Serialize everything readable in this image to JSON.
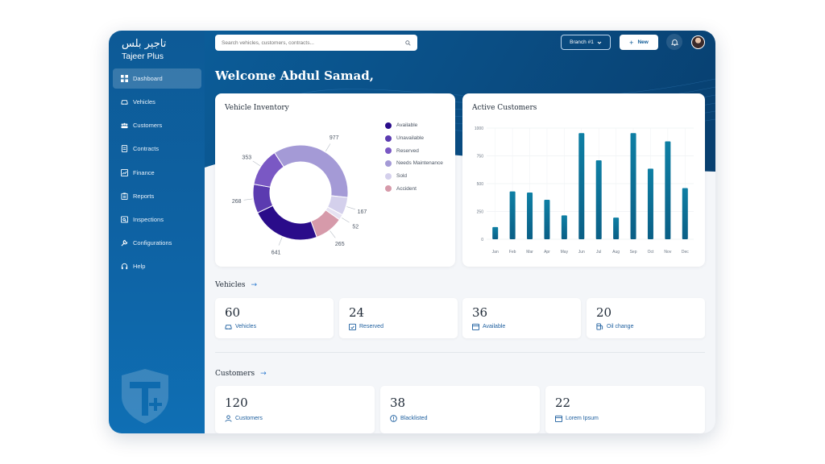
{
  "brand": {
    "arabic": "تاجير بلس",
    "english": "Tajeer Plus"
  },
  "sidebar": {
    "items": [
      {
        "label": "Dashboard",
        "icon": "grid-icon",
        "active": true
      },
      {
        "label": "Vehicles",
        "icon": "car-icon"
      },
      {
        "label": "Customers",
        "icon": "users-icon"
      },
      {
        "label": "Contracts",
        "icon": "document-icon"
      },
      {
        "label": "Finance",
        "icon": "chart-icon"
      },
      {
        "label": "Reports",
        "icon": "clipboard-icon"
      },
      {
        "label": "Inspections",
        "icon": "inspect-icon"
      },
      {
        "label": "Configurations",
        "icon": "wrench-icon"
      },
      {
        "label": "Help",
        "icon": "headset-icon"
      }
    ]
  },
  "header": {
    "search_placeholder": "Search vehicles, customers, contracts...",
    "branch_label": "Branch #1",
    "new_label": "New",
    "welcome": "Welcome Abdul Samad,"
  },
  "inventory": {
    "title": "Vehicle Inventory",
    "legend": [
      "Available",
      "Unavailable",
      "Reserved",
      "Needs Maintenance",
      "Sold",
      "Accident"
    ],
    "colors": [
      "#2a0c8a",
      "#5b3bb0",
      "#7a58c4",
      "#a49ad6",
      "#d4d0ec",
      "#d69aaa"
    ]
  },
  "customers_chart": {
    "title": "Active Customers"
  },
  "chart_data": [
    {
      "type": "pie",
      "title": "Vehicle Inventory",
      "donut": true,
      "categories": [
        "Needs Maintenance",
        "Sold",
        "Sold (small)",
        "Accident",
        "Available",
        "Unavailable",
        "Reserved"
      ],
      "values": [
        977,
        167,
        52,
        265,
        641,
        268,
        353
      ],
      "colors": [
        "#a49ad6",
        "#d4d0ec",
        "#e6e2f2",
        "#d69aaa",
        "#2a0c8a",
        "#5b3bb0",
        "#7a58c4"
      ]
    },
    {
      "type": "bar",
      "title": "Active Customers",
      "categories": [
        "Jan",
        "Feb",
        "Mar",
        "Apr",
        "May",
        "Jun",
        "Jul",
        "Aug",
        "Sep",
        "Oct",
        "Nov",
        "Dec"
      ],
      "values": [
        110,
        430,
        420,
        355,
        215,
        955,
        710,
        195,
        955,
        635,
        880,
        460
      ],
      "ylim": [
        0,
        1000
      ],
      "yticks": [
        "1000",
        "750",
        "500",
        "250",
        "0"
      ],
      "grid": true
    }
  ],
  "vehicles_section": {
    "title": "Vehicles",
    "stats": [
      {
        "value": "60",
        "label": "Vehicles",
        "icon": "car-icon"
      },
      {
        "value": "24",
        "label": "Reserved",
        "icon": "calendar-check-icon"
      },
      {
        "value": "36",
        "label": "Available",
        "icon": "calendar-icon"
      },
      {
        "value": "20",
        "label": "Oil change",
        "icon": "fuel-icon"
      }
    ]
  },
  "customers_section": {
    "title": "Customers",
    "stats": [
      {
        "value": "120",
        "label": "Customers",
        "icon": "user-icon"
      },
      {
        "value": "38",
        "label": "Blacklisted",
        "icon": "alert-circle-icon"
      },
      {
        "value": "22",
        "label": "Lorem Ipsum",
        "icon": "calendar-icon"
      }
    ]
  }
}
